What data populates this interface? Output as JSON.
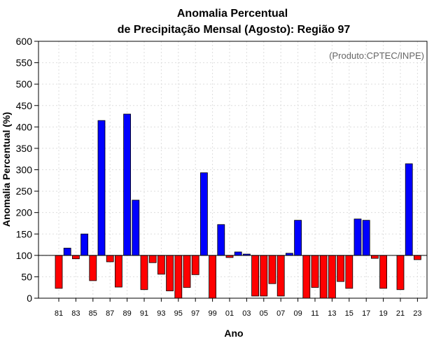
{
  "chart_data": {
    "type": "bar",
    "title": "Anomalia Percentual",
    "subtitle": "de Precipitação Mensal (Agosto): Região 97",
    "xlabel": "Ano",
    "ylabel": "Anomalia Percentual (%)",
    "credit": "(Produto:CPTEC/INPE)",
    "ylim": [
      0,
      600
    ],
    "yticks": [
      0,
      50,
      100,
      150,
      200,
      250,
      300,
      350,
      400,
      450,
      500,
      550,
      600
    ],
    "baseline": 100,
    "x_tick_labels": [
      "81",
      "83",
      "85",
      "87",
      "89",
      "91",
      "93",
      "95",
      "97",
      "99",
      "01",
      "03",
      "05",
      "07",
      "09",
      "11",
      "13",
      "15",
      "17",
      "19",
      "21",
      "23"
    ],
    "categories": [
      "81",
      "82",
      "83",
      "84",
      "85",
      "86",
      "87",
      "88",
      "89",
      "90",
      "91",
      "92",
      "93",
      "94",
      "95",
      "96",
      "97",
      "98",
      "99",
      "00",
      "01",
      "02",
      "03",
      "04",
      "05",
      "06",
      "07",
      "08",
      "09",
      "10",
      "11",
      "12",
      "13",
      "14",
      "15",
      "16",
      "17",
      "18",
      "19",
      "20",
      "21",
      "22",
      "23"
    ],
    "values": [
      23,
      117,
      92,
      150,
      41,
      415,
      85,
      26,
      430,
      229,
      20,
      83,
      56,
      17,
      0,
      25,
      55,
      293,
      0,
      172,
      95,
      108,
      103,
      5,
      5,
      34,
      5,
      105,
      182,
      0,
      25,
      0,
      0,
      39,
      23,
      185,
      182,
      93,
      23,
      100,
      20,
      314,
      90
    ],
    "colors": {
      "above": "#0000ff",
      "below": "#ff0000",
      "outline": "#000000"
    }
  }
}
